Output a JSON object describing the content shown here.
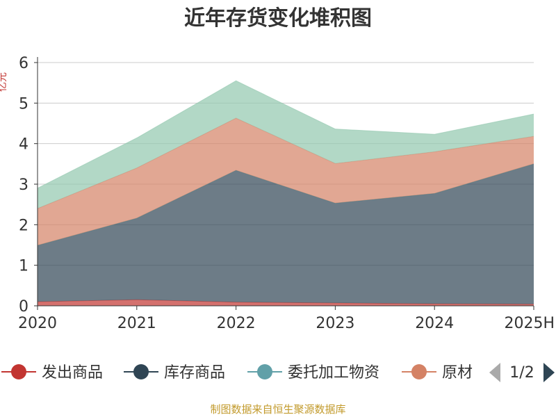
{
  "chart_data": {
    "type": "area",
    "stacked": true,
    "title": "近年存货变化堆积图",
    "ylabel": "亿元",
    "x": [
      "2020",
      "2021",
      "2022",
      "2023",
      "2024",
      "2025H"
    ],
    "ylim": [
      0,
      6
    ],
    "yticks": [
      "0",
      "1",
      "2",
      "3",
      "4",
      "5",
      "6"
    ],
    "grid": true,
    "series": [
      {
        "name": "发出商品",
        "color": "#c23531",
        "values": [
          0.1,
          0.15,
          0.09,
          0.07,
          0.05,
          0.04
        ]
      },
      {
        "name": "库存商品",
        "color": "#2f4554",
        "values": [
          1.39,
          2.01,
          3.25,
          2.46,
          2.72,
          3.46
        ]
      },
      {
        "name": "委托加工物资",
        "color": "#61a0a8",
        "values": [
          0.0,
          0.0,
          0.0,
          0.0,
          0.0,
          0.0
        ]
      },
      {
        "name": "原材料",
        "color": "#d48265",
        "values": [
          0.91,
          1.24,
          1.29,
          0.98,
          1.03,
          0.68
        ]
      },
      {
        "name": "",
        "color": "#91c7ae",
        "values": [
          0.5,
          0.74,
          0.92,
          0.85,
          0.43,
          0.55
        ]
      }
    ],
    "legend": {
      "position": "bottom",
      "visible_items": [
        {
          "label": "发出商品",
          "color": "#c23531"
        },
        {
          "label": "库存商品",
          "color": "#2f4554"
        },
        {
          "label": "委托加工物资",
          "color": "#61a0a8"
        },
        {
          "label": "原材",
          "color": "#d48265"
        }
      ],
      "page": "1/2"
    },
    "source": "制图数据来自恒生聚源数据库"
  }
}
